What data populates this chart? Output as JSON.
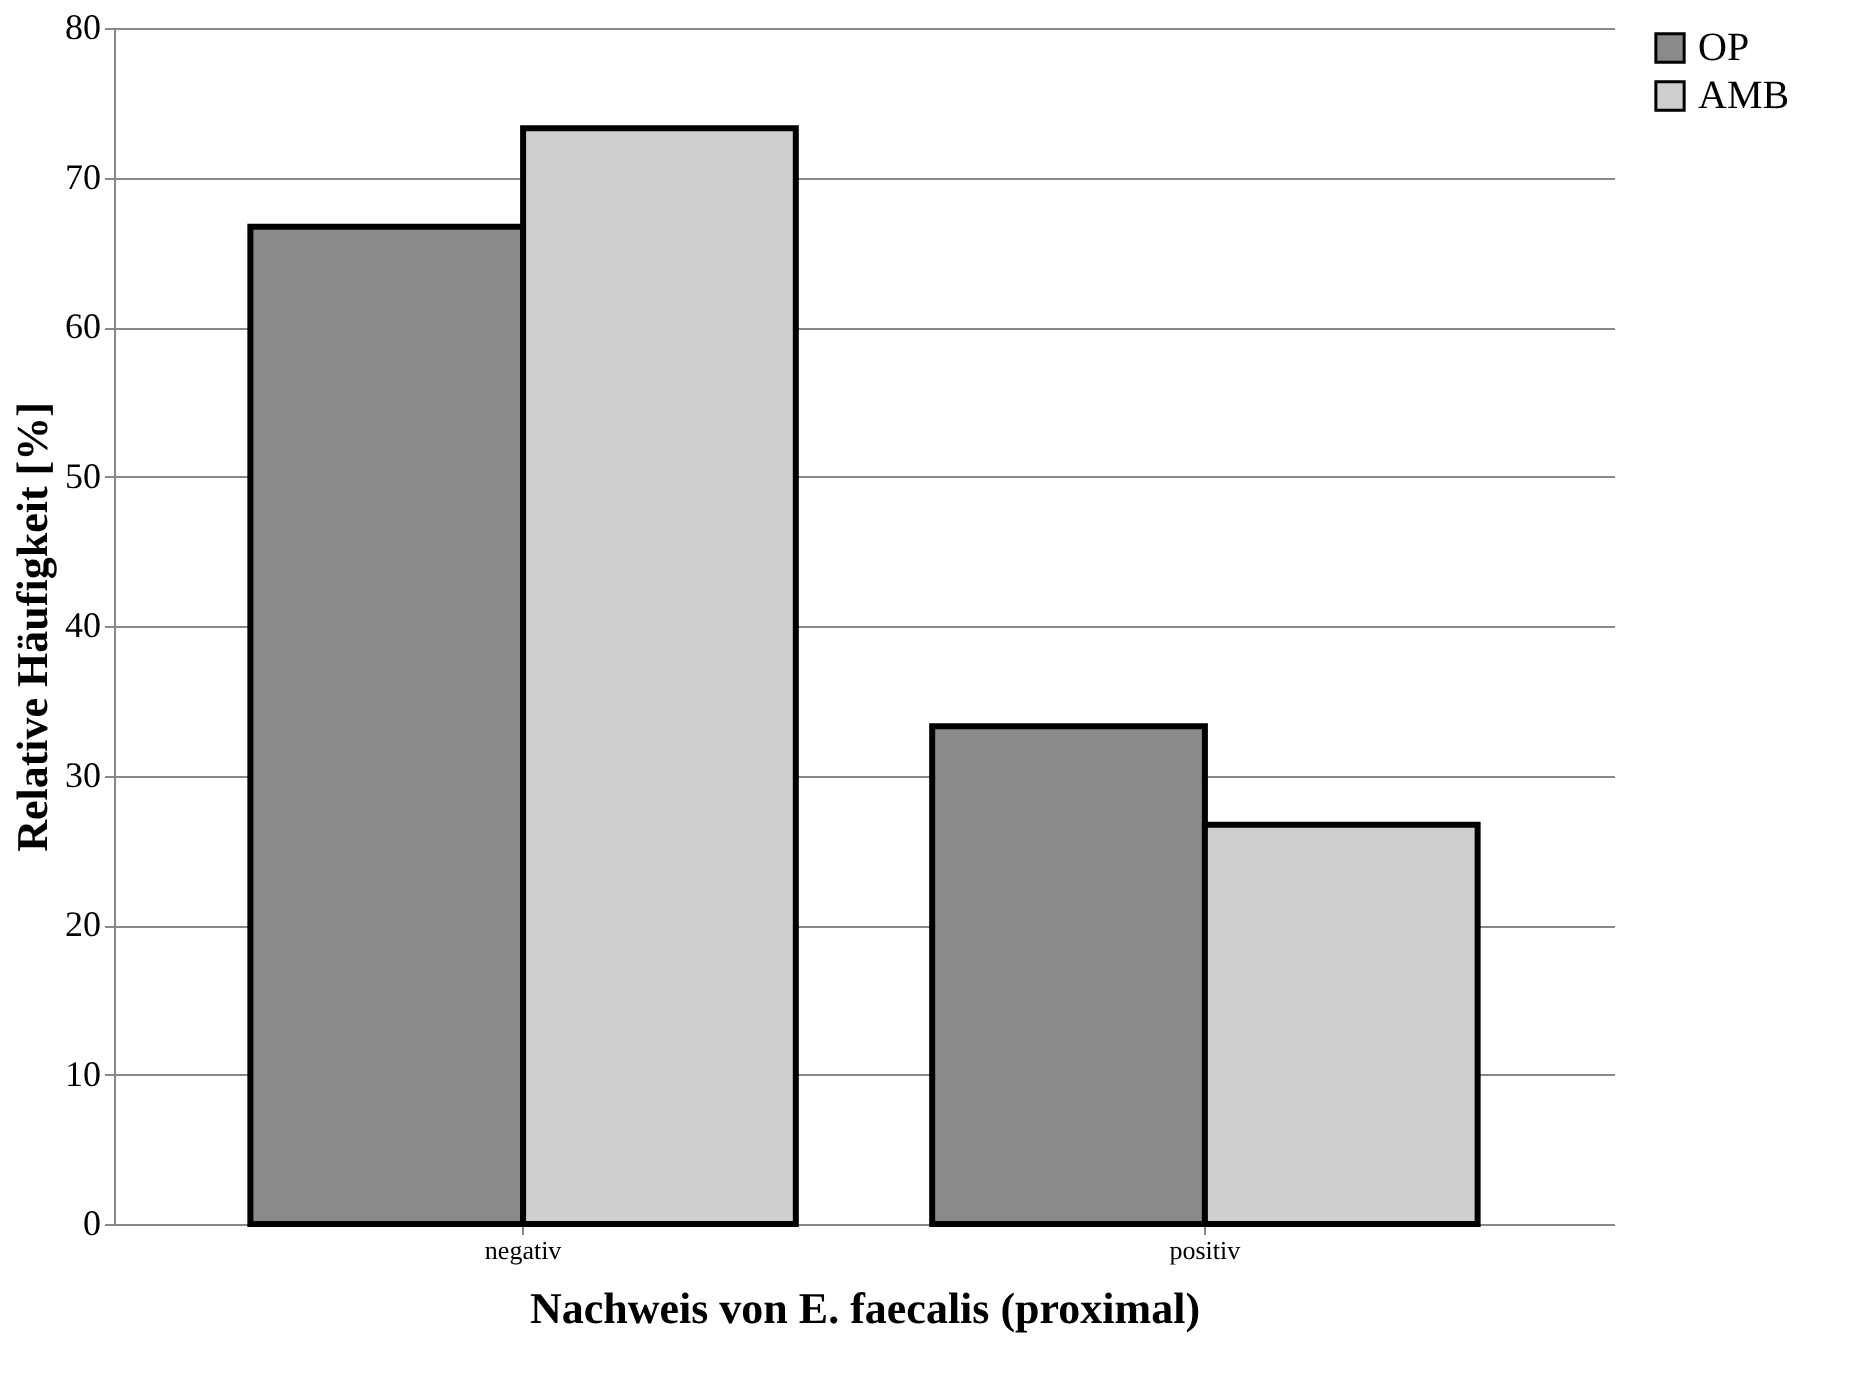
{
  "chart_data": {
    "type": "bar",
    "xlabel": "Nachweis von E. faecalis (proximal)",
    "ylabel": "Relative Häufigkeit [%]",
    "categories": [
      "negativ",
      "positiv"
    ],
    "series": [
      {
        "name": "OP",
        "color": "#8a8a8a",
        "values": [
          66.7,
          33.3
        ]
      },
      {
        "name": "AMB",
        "color": "#cfcfcf",
        "values": [
          73.3,
          26.7
        ]
      }
    ],
    "ylim": [
      0,
      80
    ],
    "yticks": [
      0,
      10,
      20,
      30,
      40,
      50,
      60,
      70,
      80
    ],
    "grid": "y",
    "legend": "right"
  }
}
